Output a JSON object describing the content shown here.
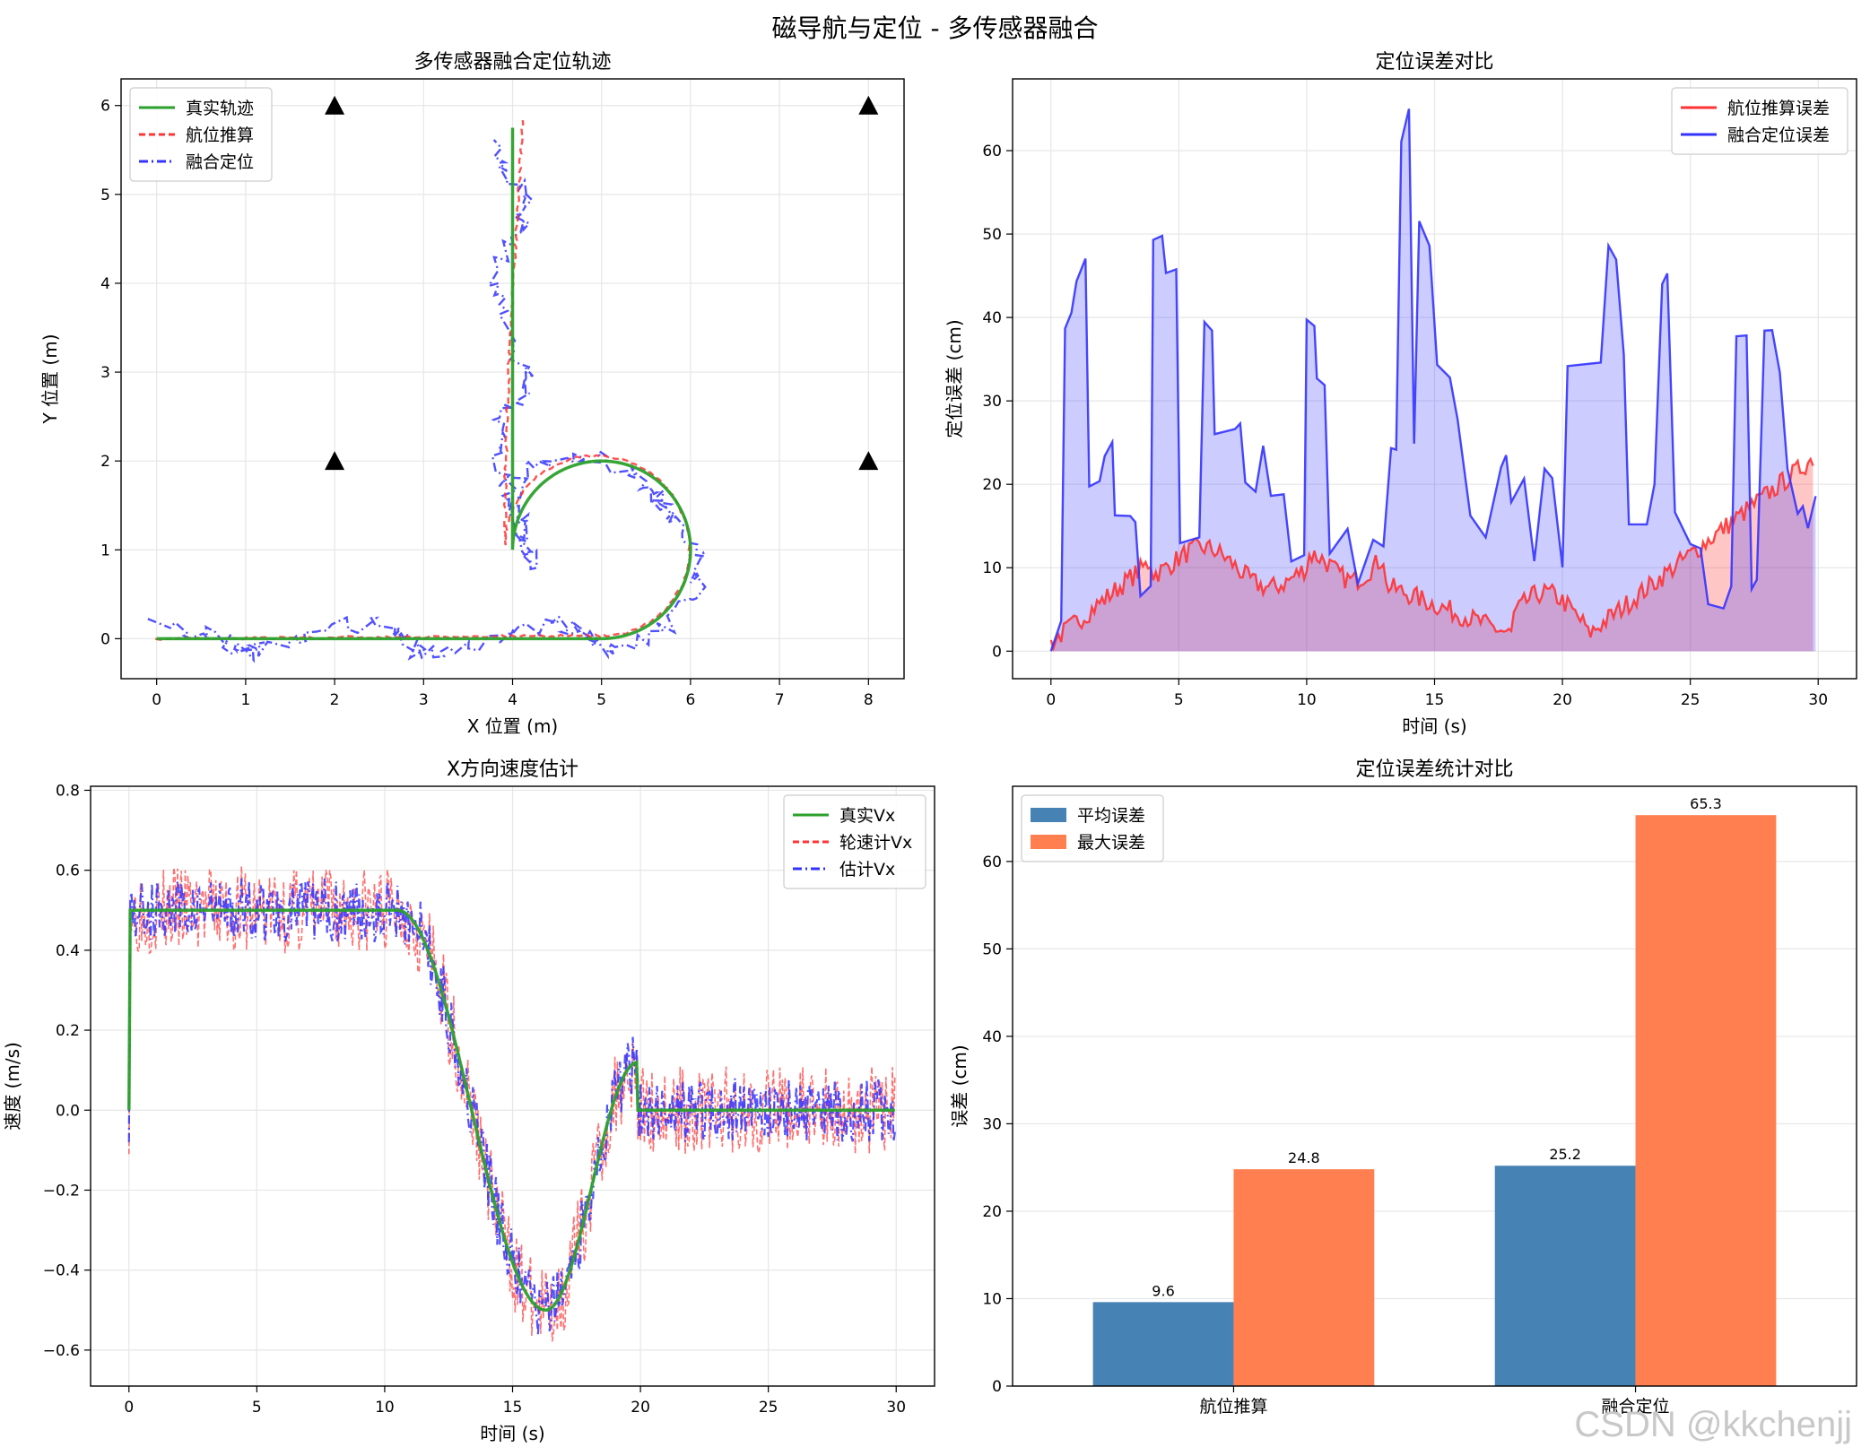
{
  "figure": {
    "suptitle": "磁导航与定位 - 多传感器融合",
    "watermark": "CSDN @kkchenjj"
  },
  "chart_data": [
    {
      "id": "trajectory",
      "type": "line",
      "title": "多传感器融合定位轨迹",
      "xlabel": "X 位置 (m)",
      "ylabel": "Y 位置 (m)",
      "xlim": [
        -0.4,
        8.4
      ],
      "ylim": [
        -0.45,
        6.3
      ],
      "xticks": [
        0,
        1,
        2,
        3,
        4,
        5,
        6,
        7,
        8
      ],
      "yticks": [
        0,
        1,
        2,
        3,
        4,
        5,
        6
      ],
      "grid": true,
      "legend_position": "top-left",
      "series": [
        {
          "name": "真实轨迹",
          "color": "#2ca02c",
          "style": "solid"
        },
        {
          "name": "航位推算",
          "color": "#ff3333",
          "style": "dashed"
        },
        {
          "name": "融合定位",
          "color": "#3333ff",
          "style": "dashdot"
        }
      ],
      "landmarks": [
        [
          2,
          6
        ],
        [
          8,
          6
        ],
        [
          2,
          2
        ],
        [
          8,
          2
        ]
      ]
    },
    {
      "id": "error",
      "type": "area",
      "title": "定位误差对比",
      "xlabel": "时间 (s)",
      "ylabel": "定位误差 (cm)",
      "xlim": [
        -1.5,
        31.5
      ],
      "ylim": [
        -3.3,
        68.6
      ],
      "xticks": [
        0,
        5,
        10,
        15,
        20,
        25,
        30
      ],
      "yticks": [
        0,
        10,
        20,
        30,
        40,
        50,
        60
      ],
      "grid": true,
      "legend_position": "top-right",
      "series": [
        {
          "name": "航位推算误差",
          "color": "#ff3333",
          "fill": "#ffb3b3"
        },
        {
          "name": "融合定位误差",
          "color": "#3333ff",
          "fill": "#b3b3ff"
        }
      ]
    },
    {
      "id": "velocity",
      "type": "line",
      "title": "X方向速度估计",
      "xlabel": "时间 (s)",
      "ylabel": "速度 (m/s)",
      "xlim": [
        -1.5,
        31.5
      ],
      "ylim": [
        -0.69,
        0.81
      ],
      "xticks": [
        0,
        5,
        10,
        15,
        20,
        25,
        30
      ],
      "yticks": [
        -0.6,
        -0.4,
        -0.2,
        0.0,
        0.2,
        0.4,
        0.6,
        0.8
      ],
      "ytick_labels": [
        "−0.6",
        "−0.4",
        "−0.2",
        "0.0",
        "0.2",
        "0.4",
        "0.6",
        "0.8"
      ],
      "grid": true,
      "legend_position": "top-right",
      "series": [
        {
          "name": "真实Vx",
          "color": "#2ca02c",
          "style": "solid"
        },
        {
          "name": "轮速计Vx",
          "color": "#ff3333",
          "style": "dashed"
        },
        {
          "name": "估计Vx",
          "color": "#3333ff",
          "style": "dashdot"
        }
      ]
    },
    {
      "id": "stats",
      "type": "bar",
      "title": "定位误差统计对比",
      "xlabel": "",
      "ylabel": "误差 (cm)",
      "ylim": [
        0,
        68.6
      ],
      "yticks": [
        0,
        10,
        20,
        30,
        40,
        50,
        60
      ],
      "grid": true,
      "legend_position": "top-left",
      "categories": [
        "航位推算",
        "融合定位"
      ],
      "series": [
        {
          "name": "平均误差",
          "color": "#4682b4",
          "values": [
            9.6,
            25.2
          ],
          "labels": [
            "9.6",
            "25.2"
          ]
        },
        {
          "name": "最大误差",
          "color": "#ff7f50",
          "values": [
            24.8,
            65.3
          ],
          "labels": [
            "24.8",
            "65.3"
          ]
        }
      ]
    }
  ]
}
